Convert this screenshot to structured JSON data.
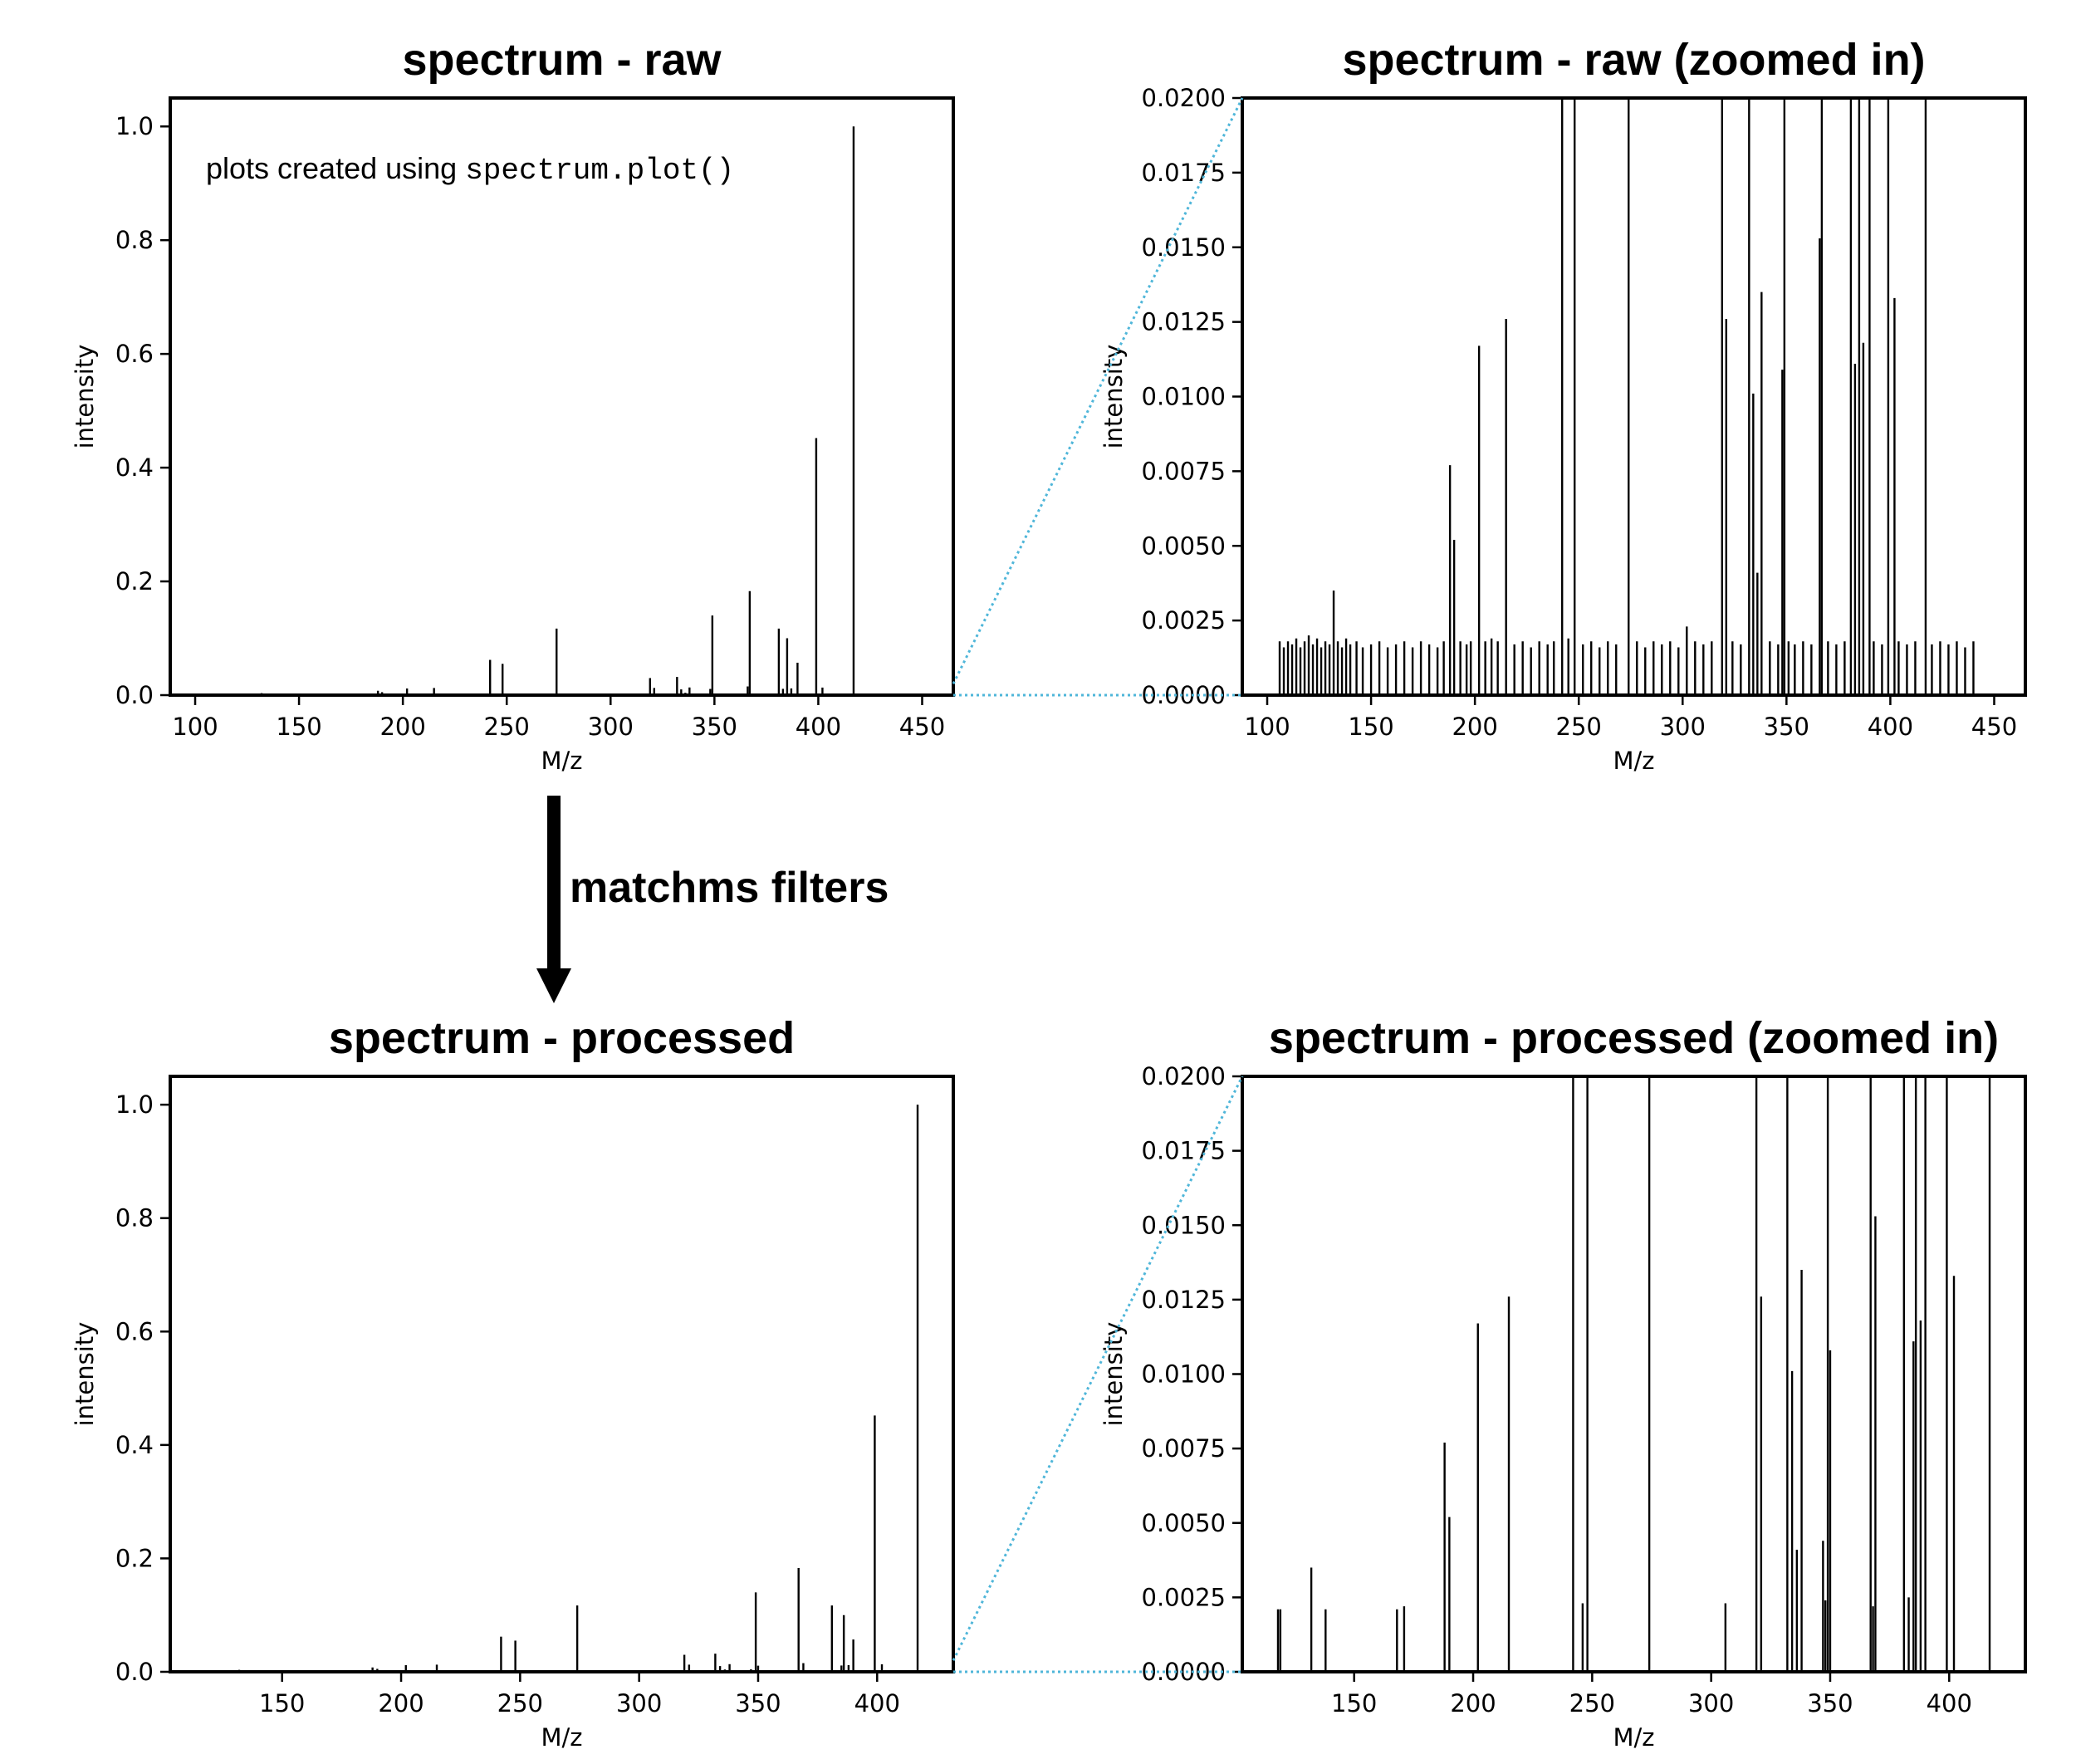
{
  "annotation": {
    "prefix": "plots created using ",
    "code": "spectrum.plot()"
  },
  "arrow": {
    "label": "matchms filters"
  },
  "zoom_line_color": "#4FB6D9",
  "chart_data": [
    {
      "id": "raw",
      "type": "bar",
      "title": "spectrum - raw",
      "xlabel": "M/z",
      "ylabel": "intensity",
      "xlim": [
        88,
        465
      ],
      "ylim": [
        0,
        1.05
      ],
      "xticks": [
        100,
        150,
        200,
        250,
        300,
        350,
        400,
        450
      ],
      "yticks": [
        0.0,
        0.2,
        0.4,
        0.6,
        0.8,
        1.0
      ],
      "ytick_decimals": 1,
      "peaks": [
        [
          106,
          0.0018
        ],
        [
          108,
          0.0016
        ],
        [
          110,
          0.0018
        ],
        [
          112,
          0.0017
        ],
        [
          114,
          0.0019
        ],
        [
          116,
          0.0016
        ],
        [
          118,
          0.0018
        ],
        [
          120,
          0.002
        ],
        [
          122,
          0.0017
        ],
        [
          124,
          0.0019
        ],
        [
          126,
          0.0016
        ],
        [
          128,
          0.0018
        ],
        [
          130,
          0.0017
        ],
        [
          132,
          0.0035
        ],
        [
          134,
          0.0018
        ],
        [
          136,
          0.0016
        ],
        [
          138,
          0.0019
        ],
        [
          140,
          0.0017
        ],
        [
          143,
          0.0018
        ],
        [
          146,
          0.0016
        ],
        [
          150,
          0.0017
        ],
        [
          154,
          0.0018
        ],
        [
          158,
          0.0016
        ],
        [
          162,
          0.0017
        ],
        [
          166,
          0.0018
        ],
        [
          170,
          0.0016
        ],
        [
          174,
          0.0018
        ],
        [
          178,
          0.0017
        ],
        [
          182,
          0.0016
        ],
        [
          185,
          0.0018
        ],
        [
          188,
          0.0077
        ],
        [
          190,
          0.0052
        ],
        [
          193,
          0.0018
        ],
        [
          196,
          0.0017
        ],
        [
          198,
          0.0018
        ],
        [
          202,
          0.0117
        ],
        [
          205,
          0.0018
        ],
        [
          208,
          0.0019
        ],
        [
          211,
          0.0018
        ],
        [
          215,
          0.0126
        ],
        [
          219,
          0.0017
        ],
        [
          223,
          0.0018
        ],
        [
          227,
          0.0016
        ],
        [
          231,
          0.0018
        ],
        [
          235,
          0.0017
        ],
        [
          238,
          0.0018
        ],
        [
          242,
          0.062
        ],
        [
          245,
          0.0019
        ],
        [
          248,
          0.055
        ],
        [
          252,
          0.0017
        ],
        [
          256,
          0.0018
        ],
        [
          260,
          0.0016
        ],
        [
          264,
          0.0018
        ],
        [
          268,
          0.0017
        ],
        [
          274,
          0.117
        ],
        [
          278,
          0.0018
        ],
        [
          282,
          0.0016
        ],
        [
          286,
          0.0018
        ],
        [
          290,
          0.0017
        ],
        [
          294,
          0.0018
        ],
        [
          298,
          0.0016
        ],
        [
          302,
          0.0023
        ],
        [
          306,
          0.0018
        ],
        [
          310,
          0.0017
        ],
        [
          314,
          0.0018
        ],
        [
          319,
          0.03
        ],
        [
          321,
          0.0126
        ],
        [
          324,
          0.0018
        ],
        [
          328,
          0.0017
        ],
        [
          332,
          0.032
        ],
        [
          334,
          0.0101
        ],
        [
          336,
          0.0041
        ],
        [
          338,
          0.0135
        ],
        [
          342,
          0.0018
        ],
        [
          346,
          0.0017
        ],
        [
          348,
          0.0109
        ],
        [
          349,
          0.14
        ],
        [
          351,
          0.0018
        ],
        [
          354,
          0.0017
        ],
        [
          358,
          0.0018
        ],
        [
          362,
          0.0017
        ],
        [
          366,
          0.0153
        ],
        [
          367,
          0.183
        ],
        [
          370,
          0.0018
        ],
        [
          374,
          0.0017
        ],
        [
          378,
          0.0018
        ],
        [
          381,
          0.117
        ],
        [
          383,
          0.0111
        ],
        [
          385,
          0.1
        ],
        [
          387,
          0.0118
        ],
        [
          390,
          0.057
        ],
        [
          392,
          0.0018
        ],
        [
          396,
          0.0017
        ],
        [
          399,
          0.452
        ],
        [
          402,
          0.0133
        ],
        [
          404,
          0.0018
        ],
        [
          408,
          0.0017
        ],
        [
          412,
          0.0018
        ],
        [
          417,
          1.0
        ],
        [
          420,
          0.0017
        ],
        [
          424,
          0.0018
        ],
        [
          428,
          0.0017
        ],
        [
          432,
          0.0018
        ],
        [
          436,
          0.0016
        ],
        [
          440,
          0.0018
        ]
      ]
    },
    {
      "id": "raw_zoom",
      "type": "bar",
      "title": "spectrum - raw (zoomed in)",
      "xlabel": "M/z",
      "ylabel": "intensity",
      "xlim": [
        88,
        465
      ],
      "ylim": [
        0,
        0.02
      ],
      "xticks": [
        100,
        150,
        200,
        250,
        300,
        350,
        400,
        450
      ],
      "yticks": [
        0.0,
        0.0025,
        0.005,
        0.0075,
        0.01,
        0.0125,
        0.015,
        0.0175,
        0.02
      ],
      "ytick_decimals": 4,
      "peaks_from": "raw"
    },
    {
      "id": "processed",
      "type": "bar",
      "title": "spectrum - processed",
      "xlabel": "M/z",
      "ylabel": "intensity",
      "xlim": [
        103,
        432
      ],
      "ylim": [
        0,
        1.05
      ],
      "xticks": [
        150,
        200,
        250,
        300,
        350,
        400
      ],
      "yticks": [
        0.0,
        0.2,
        0.4,
        0.6,
        0.8,
        1.0
      ],
      "ytick_decimals": 1,
      "peaks": [
        [
          118,
          0.0021
        ],
        [
          119,
          0.0021
        ],
        [
          132,
          0.0035
        ],
        [
          138,
          0.0021
        ],
        [
          168,
          0.0021
        ],
        [
          171,
          0.0022
        ],
        [
          188,
          0.0077
        ],
        [
          190,
          0.0052
        ],
        [
          202,
          0.0117
        ],
        [
          215,
          0.0126
        ],
        [
          242,
          0.062
        ],
        [
          246,
          0.0023
        ],
        [
          248,
          0.055
        ],
        [
          274,
          0.117
        ],
        [
          306,
          0.0023
        ],
        [
          319,
          0.03
        ],
        [
          321,
          0.0126
        ],
        [
          332,
          0.032
        ],
        [
          334,
          0.0101
        ],
        [
          336,
          0.0041
        ],
        [
          338,
          0.0135
        ],
        [
          347,
          0.0044
        ],
        [
          348,
          0.0024
        ],
        [
          349,
          0.14
        ],
        [
          350,
          0.0108
        ],
        [
          367,
          0.183
        ],
        [
          368,
          0.0022
        ],
        [
          369,
          0.0153
        ],
        [
          381,
          0.117
        ],
        [
          383,
          0.0025
        ],
        [
          385,
          0.0111
        ],
        [
          386,
          0.1
        ],
        [
          388,
          0.0118
        ],
        [
          390,
          0.057
        ],
        [
          399,
          0.452
        ],
        [
          402,
          0.0133
        ],
        [
          417,
          1.0
        ]
      ]
    },
    {
      "id": "processed_zoom",
      "type": "bar",
      "title": "spectrum - processed (zoomed in)",
      "xlabel": "M/z",
      "ylabel": "intensity",
      "xlim": [
        103,
        432
      ],
      "ylim": [
        0,
        0.02
      ],
      "xticks": [
        150,
        200,
        250,
        300,
        350,
        400
      ],
      "yticks": [
        0.0,
        0.0025,
        0.005,
        0.0075,
        0.01,
        0.0125,
        0.015,
        0.0175,
        0.02
      ],
      "ytick_decimals": 4,
      "peaks_from": "processed"
    }
  ]
}
